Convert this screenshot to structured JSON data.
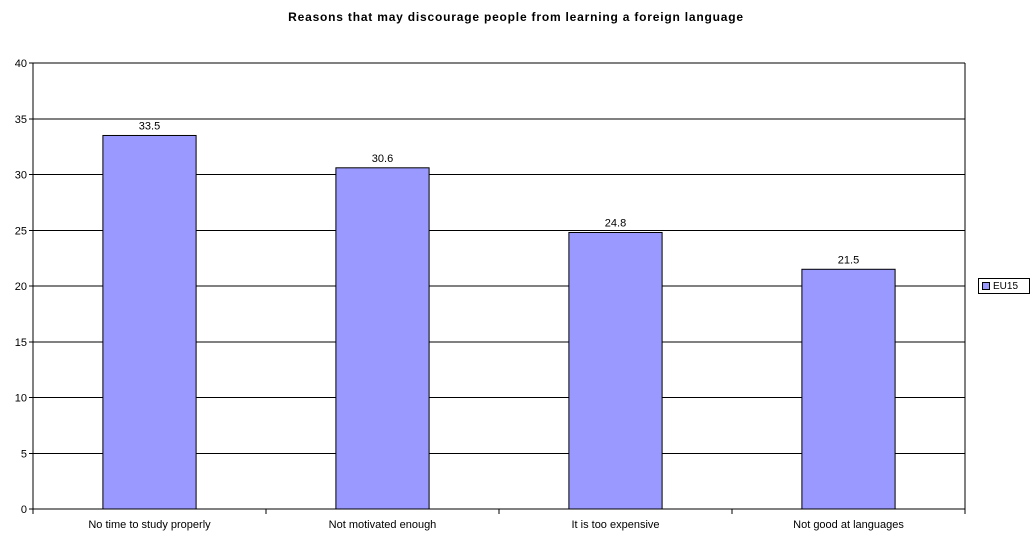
{
  "chart_data": {
    "type": "bar",
    "title": "Reasons that may discourage people from learning a foreign language",
    "categories": [
      "No time to study properly",
      "Not motivated enough",
      "It is too expensive",
      "Not good at languages"
    ],
    "series": [
      {
        "name": "EU15",
        "values": [
          33.5,
          30.6,
          24.8,
          21.5
        ],
        "color": "#9999ff"
      }
    ],
    "data_labels": [
      "33.5",
      "30.6",
      "24.8",
      "21.5"
    ],
    "xlabel": "",
    "ylabel": "",
    "ylim": [
      0,
      40
    ],
    "yticks": [
      0,
      5,
      10,
      15,
      20,
      25,
      30,
      35,
      40
    ],
    "grid": true,
    "legend": "right"
  }
}
